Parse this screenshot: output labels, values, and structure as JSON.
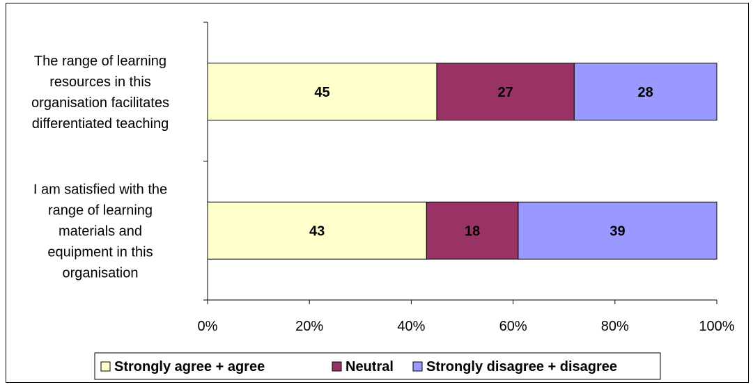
{
  "chart_data": {
    "type": "bar",
    "orientation": "horizontal",
    "stacked": "percent",
    "title": "",
    "xlabel": "",
    "ylabel": "",
    "categories": [
      "The range of learning resources in this organisation facilitates differentiated teaching",
      "I am satisfied with the range of learning materials and equipment in this organisation"
    ],
    "category_lines": [
      [
        "The range of learning",
        "resources in this",
        "organisation facilitates",
        "differentiated teaching"
      ],
      [
        "I am satisfied with the",
        "range of learning",
        "materials and",
        "equipment in this",
        "organisation"
      ]
    ],
    "series": [
      {
        "name": "Strongly agree + agree",
        "values": [
          45,
          43
        ],
        "color": "#FFFFCC"
      },
      {
        "name": "Neutral",
        "values": [
          27,
          18
        ],
        "color": "#993366"
      },
      {
        "name": "Strongly disagree + disagree",
        "values": [
          28,
          39
        ],
        "color": "#9999FF"
      }
    ],
    "xlim": [
      0,
      100
    ],
    "xticks": [
      "0%",
      "20%",
      "40%",
      "60%",
      "80%",
      "100%"
    ],
    "grid": false,
    "legend": "bottom"
  }
}
